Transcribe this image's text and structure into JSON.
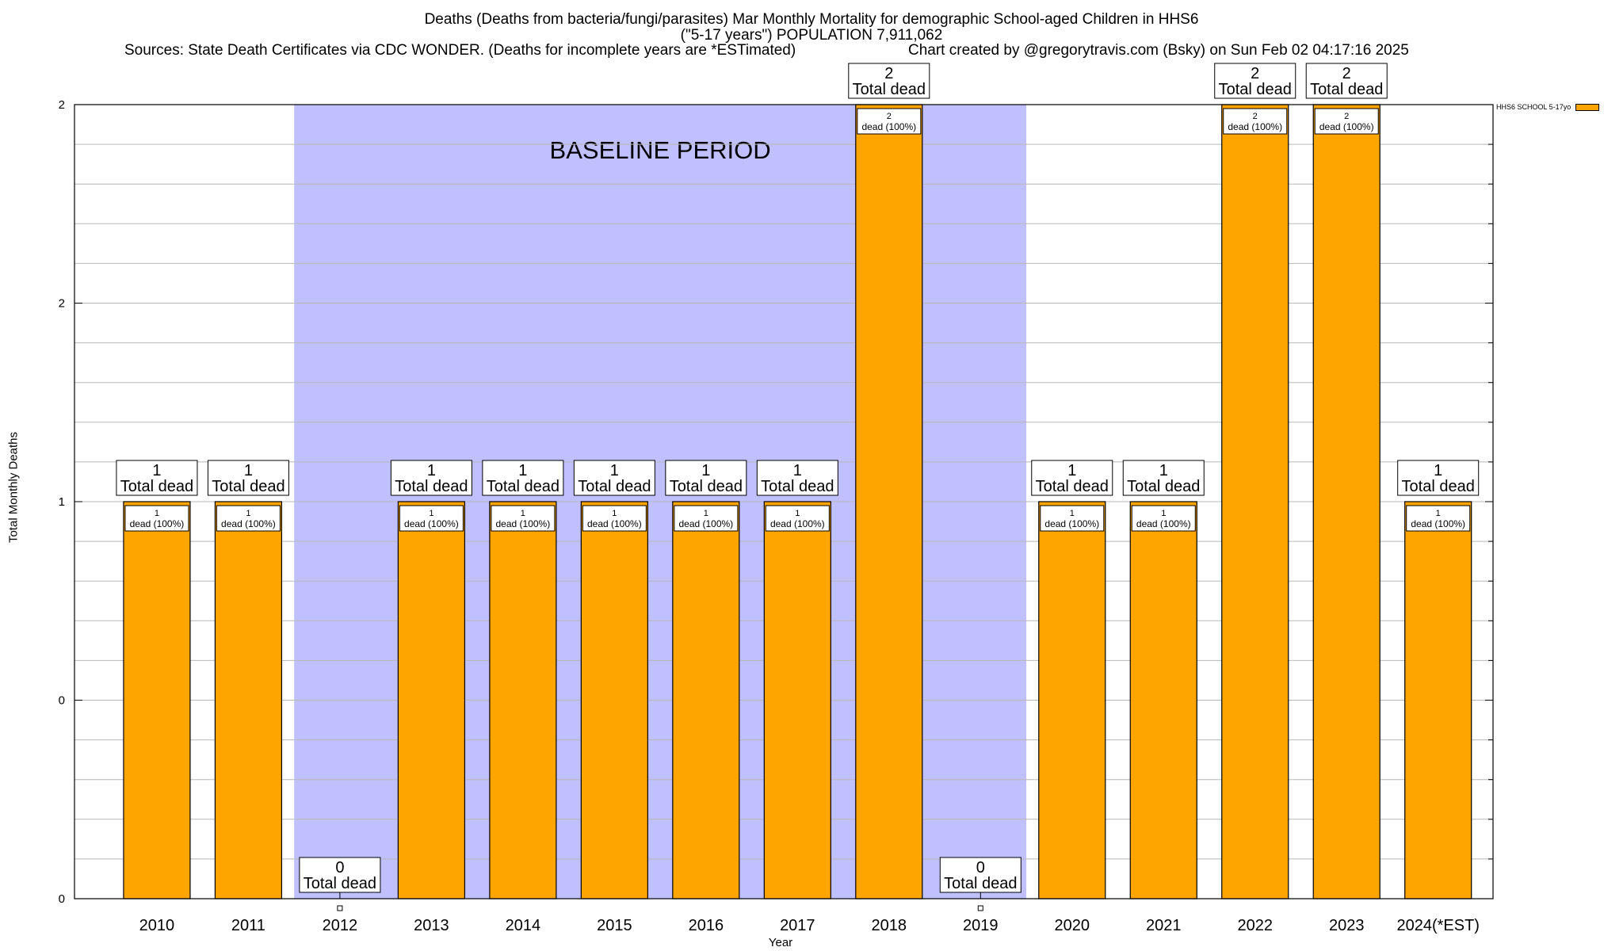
{
  "header": {
    "title_line1": "Deaths (Deaths from bacteria/fungi/parasites) Mar Monthly Mortality for demographic School-aged Children in HHS6",
    "title_line2": "(\"5-17 years\") POPULATION 7,911,062",
    "sources": "Sources: State Death Certificates via CDC WONDER. (Deaths for incomplete years are *ESTimated)",
    "credit": "Chart created by @gregorytravis.com (Bsky) on Sun Feb 02 04:17:16 2025"
  },
  "chart_data": {
    "type": "bar",
    "title": "Deaths (Deaths from bacteria/fungi/parasites) Mar Monthly Mortality for demographic School-aged Children in HHS6",
    "xlabel": "Year",
    "ylabel": "Total Monthly Deaths",
    "categories": [
      "2010",
      "2011",
      "2012",
      "2013",
      "2014",
      "2015",
      "2016",
      "2017",
      "2018",
      "2019",
      "2020",
      "2021",
      "2022",
      "2023",
      "2024(*EST)"
    ],
    "series": [
      {
        "name": "HHS6 SCHOOL 5-17yo",
        "color": "#ffa500",
        "values": [
          1,
          1,
          0,
          1,
          1,
          1,
          1,
          1,
          2,
          0,
          1,
          1,
          2,
          2,
          1
        ]
      }
    ],
    "ytick_labels": [
      "0",
      "0",
      "1",
      "2",
      "2"
    ],
    "ylim": [
      0,
      2
    ],
    "grid": true,
    "baseline_period": {
      "label": "BASELINE PERIOD",
      "start": "2012",
      "end": "2019",
      "color": "#c0c0ff"
    },
    "total_label_suffix": "Total dead",
    "inner_label_suffix": "dead (100%)",
    "legend_position": "top-right"
  }
}
